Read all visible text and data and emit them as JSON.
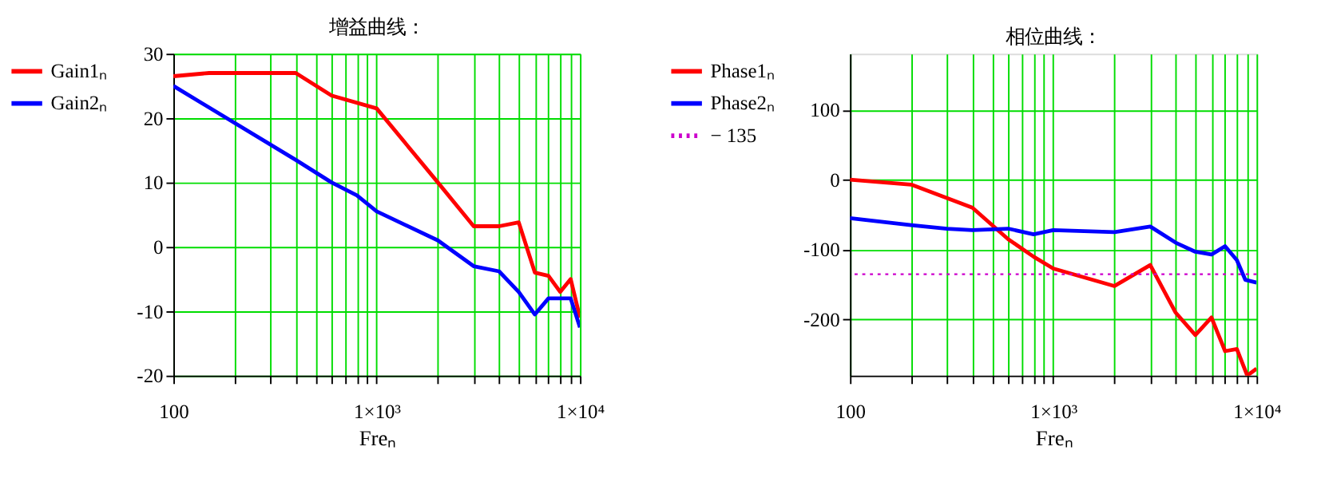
{
  "chart_data": [
    {
      "type": "line",
      "title": "增益曲线：",
      "xlabel": "Freₙ",
      "log": "x",
      "grid": true,
      "legend": "left",
      "line_style": "solid",
      "marker": "none",
      "xlim": [
        100,
        10000
      ],
      "xticks": [
        100,
        {
          "value": 200,
          "label": null
        },
        {
          "value": 300,
          "label": null
        },
        {
          "value": 400,
          "label": null
        },
        {
          "value": 500,
          "label": null
        },
        {
          "value": 600,
          "label": null
        },
        {
          "value": 700,
          "label": null
        },
        {
          "value": 800,
          "label": null
        },
        {
          "value": 900,
          "label": null
        },
        {
          "value": 1000,
          "label": "1×10³"
        },
        {
          "value": 2000,
          "label": null
        },
        {
          "value": 3000,
          "label": null
        },
        {
          "value": 4000,
          "label": null
        },
        {
          "value": 5000,
          "label": null
        },
        {
          "value": 6000,
          "label": null
        },
        {
          "value": 7000,
          "label": null
        },
        {
          "value": 8000,
          "label": null
        },
        {
          "value": 9000,
          "label": null
        },
        {
          "value": 10000,
          "label": "1×10⁴"
        }
      ],
      "ylim": [
        -20,
        30
      ],
      "yticks": [
        -20,
        -10,
        0,
        10,
        20,
        30
      ],
      "series": [
        {
          "name": "Gain1ₙ",
          "color": "#ff0000",
          "x": [
            100,
            150,
            200,
            400,
            600,
            1000,
            2000,
            3000,
            4000,
            5000,
            6000,
            7000,
            8000,
            9000,
            10000
          ],
          "values": [
            26.5,
            27,
            27,
            27,
            23.5,
            21.5,
            10,
            3.2,
            3.2,
            3.8,
            -4,
            -4.5,
            -7,
            -5,
            -11
          ]
        },
        {
          "name": "Gain2ₙ",
          "color": "#0000ff",
          "x": [
            100,
            400,
            600,
            800,
            1000,
            2000,
            3000,
            4000,
            5000,
            6000,
            7000,
            9000,
            10000
          ],
          "values": [
            25,
            13.5,
            10,
            8,
            5.5,
            1,
            -3,
            -3.8,
            -7,
            -10.5,
            -8,
            -8,
            -12.5
          ]
        }
      ]
    },
    {
      "type": "line",
      "title": "相位曲线：",
      "xlabel": "Freₙ",
      "log": "x",
      "grid": true,
      "legend": "left",
      "line_style": "solid",
      "marker": "none",
      "xlim": [
        100,
        10000
      ],
      "xticks": [
        100,
        {
          "value": 200,
          "label": null
        },
        {
          "value": 300,
          "label": null
        },
        {
          "value": 400,
          "label": null
        },
        {
          "value": 500,
          "label": null
        },
        {
          "value": 600,
          "label": null
        },
        {
          "value": 700,
          "label": null
        },
        {
          "value": 800,
          "label": null
        },
        {
          "value": 900,
          "label": null
        },
        {
          "value": 1000,
          "label": "1×10³"
        },
        {
          "value": 2000,
          "label": null
        },
        {
          "value": 3000,
          "label": null
        },
        {
          "value": 4000,
          "label": null
        },
        {
          "value": 5000,
          "label": null
        },
        {
          "value": 6000,
          "label": null
        },
        {
          "value": 7000,
          "label": null
        },
        {
          "value": 8000,
          "label": null
        },
        {
          "value": 9000,
          "label": null
        },
        {
          "value": 10000,
          "label": "1×10⁴"
        }
      ],
      "ylim": [
        -280,
        180
      ],
      "yticks": [
        -200,
        -100,
        0,
        100
      ],
      "series": [
        {
          "name": "Phase1ₙ",
          "color": "#ff0000",
          "x": [
            100,
            200,
            400,
            600,
            800,
            1000,
            2000,
            3000,
            4000,
            5000,
            6000,
            7000,
            8000,
            9000,
            10000
          ],
          "values": [
            0,
            -7,
            -40,
            -85,
            -110,
            -127,
            -152,
            -122,
            -190,
            -222,
            -197,
            -245,
            -242,
            -280,
            -270
          ]
        },
        {
          "name": "Phase2ₙ",
          "color": "#0000ff",
          "x": [
            100,
            200,
            300,
            400,
            600,
            800,
            1000,
            2000,
            3000,
            4000,
            5000,
            6000,
            7000,
            8000,
            8800,
            10000
          ],
          "values": [
            -55,
            -65,
            -70,
            -72,
            -70,
            -78,
            -72,
            -75,
            -67,
            -90,
            -103,
            -107,
            -95,
            -115,
            -143,
            -147
          ]
        }
      ],
      "ref_lines": [
        {
          "axis": "y",
          "value": -135,
          "label": "− 135",
          "color": "#cc00cc",
          "line_style": "dotted"
        }
      ]
    }
  ]
}
